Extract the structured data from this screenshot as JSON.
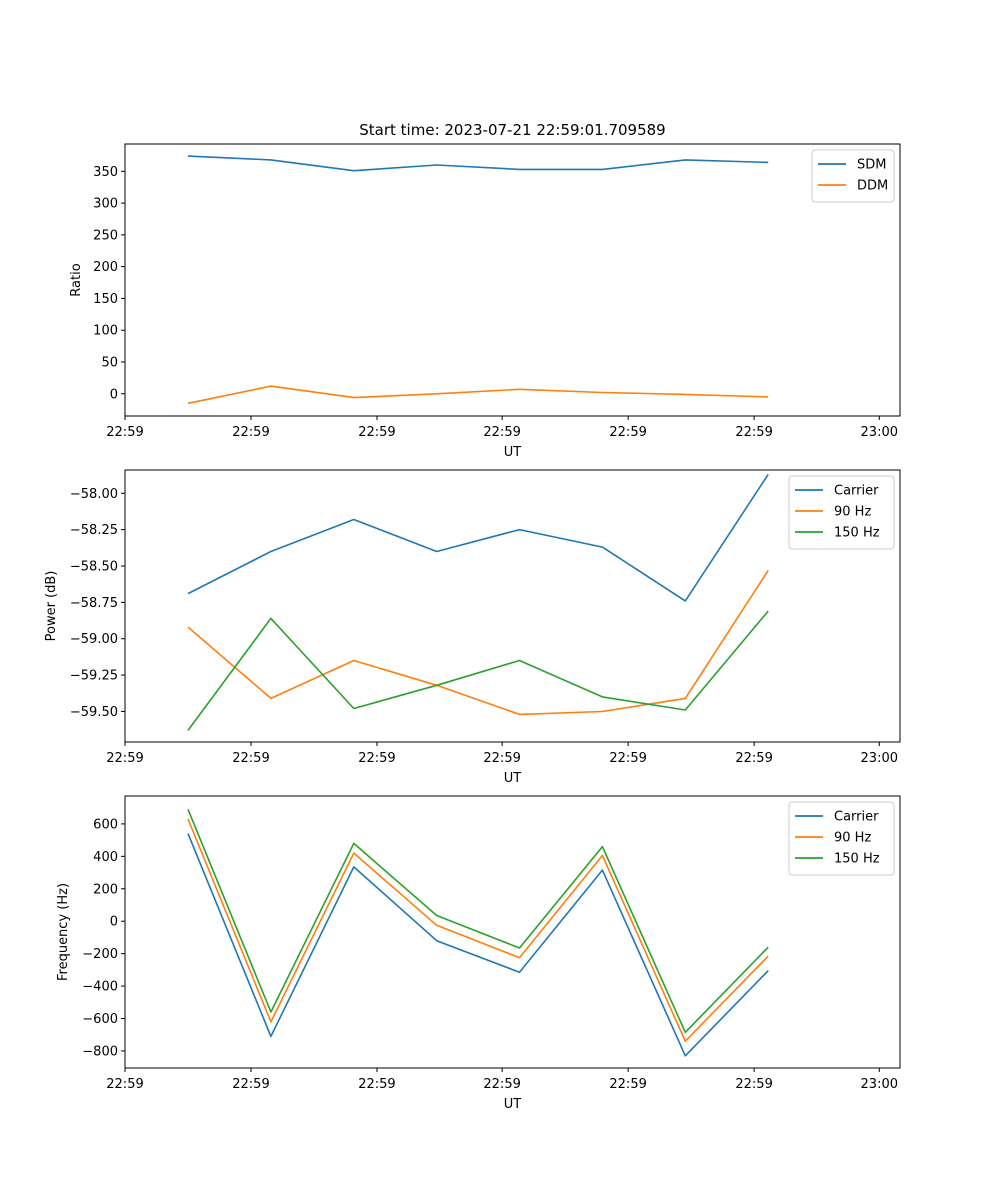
{
  "chart_data": [
    {
      "type": "line",
      "title": "Start time: 2023-07-21 22:59:01.709589",
      "xlabel": "UT",
      "ylabel": "Ratio",
      "x": [
        0,
        1,
        2,
        3,
        4,
        5,
        6,
        7
      ],
      "xlim": [
        -0.76,
        8.59
      ],
      "ylim": [
        -35,
        393
      ],
      "x_ticks": [
        -0.76,
        0.76,
        2.28,
        3.79,
        5.31,
        6.83,
        8.34
      ],
      "x_tick_labels": [
        "22:59",
        "22:59",
        "22:59",
        "22:59",
        "22:59",
        "22:59",
        "23:00"
      ],
      "y_ticks": [
        0,
        50,
        100,
        150,
        200,
        250,
        300,
        350
      ],
      "y_tick_labels": [
        "0",
        "50",
        "100",
        "150",
        "200",
        "250",
        "300",
        "350"
      ],
      "grid": false,
      "legend": "top-right",
      "series": [
        {
          "name": "SDM",
          "color": "#1f77b4",
          "values": [
            374,
            368,
            351,
            360,
            353,
            353,
            368,
            364
          ]
        },
        {
          "name": "DDM",
          "color": "#ff7f0e",
          "values": [
            -15,
            12,
            -6,
            0,
            7,
            2,
            -1,
            -5
          ]
        }
      ]
    },
    {
      "type": "line",
      "title": "",
      "xlabel": "UT",
      "ylabel": "Power (dB)",
      "x": [
        0,
        1,
        2,
        3,
        4,
        5,
        6,
        7
      ],
      "xlim": [
        -0.76,
        8.59
      ],
      "ylim": [
        -59.71,
        -57.84
      ],
      "x_ticks": [
        -0.76,
        0.76,
        2.28,
        3.79,
        5.31,
        6.83,
        8.34
      ],
      "x_tick_labels": [
        "22:59",
        "22:59",
        "22:59",
        "22:59",
        "22:59",
        "22:59",
        "23:00"
      ],
      "y_ticks": [
        -59.5,
        -59.25,
        -59.0,
        -58.75,
        -58.5,
        -58.25,
        -58.0
      ],
      "y_tick_labels": [
        "−59.50",
        "−59.25",
        "−59.00",
        "−58.75",
        "−58.50",
        "−58.25",
        "−58.00"
      ],
      "grid": false,
      "legend": "top-right",
      "series": [
        {
          "name": "Carrier",
          "color": "#1f77b4",
          "values": [
            -58.69,
            -58.4,
            -58.18,
            -58.4,
            -58.25,
            -58.37,
            -58.74,
            -57.87
          ]
        },
        {
          "name": "90 Hz",
          "color": "#ff7f0e",
          "values": [
            -58.92,
            -59.41,
            -59.15,
            -59.32,
            -59.52,
            -59.5,
            -59.41,
            -58.53
          ]
        },
        {
          "name": "150 Hz",
          "color": "#2ca02c",
          "values": [
            -59.63,
            -58.86,
            -59.48,
            -59.32,
            -59.15,
            -59.4,
            -59.49,
            -58.81
          ]
        }
      ]
    },
    {
      "type": "line",
      "title": "",
      "xlabel": "UT",
      "ylabel": "Frequency (Hz)",
      "x": [
        0,
        1,
        2,
        3,
        4,
        5,
        6,
        7
      ],
      "xlim": [
        -0.76,
        8.59
      ],
      "ylim": [
        -905,
        772
      ],
      "x_ticks": [
        -0.76,
        0.76,
        2.28,
        3.79,
        5.31,
        6.83,
        8.34
      ],
      "x_tick_labels": [
        "22:59",
        "22:59",
        "22:59",
        "22:59",
        "22:59",
        "22:59",
        "23:00"
      ],
      "y_ticks": [
        -800,
        -600,
        -400,
        -200,
        0,
        200,
        400,
        600
      ],
      "y_tick_labels": [
        "−800",
        "−600",
        "−400",
        "−200",
        "0",
        "200",
        "400",
        "600"
      ],
      "grid": false,
      "legend": "top-right",
      "series": [
        {
          "name": "Carrier",
          "color": "#1f77b4",
          "values": [
            540,
            -710,
            335,
            -120,
            -315,
            315,
            -830,
            -305
          ]
        },
        {
          "name": "90 Hz",
          "color": "#ff7f0e",
          "values": [
            630,
            -620,
            420,
            -25,
            -225,
            405,
            -740,
            -215
          ]
        },
        {
          "name": "150 Hz",
          "color": "#2ca02c",
          "values": [
            690,
            -560,
            480,
            35,
            -165,
            460,
            -685,
            -160
          ]
        }
      ]
    }
  ]
}
